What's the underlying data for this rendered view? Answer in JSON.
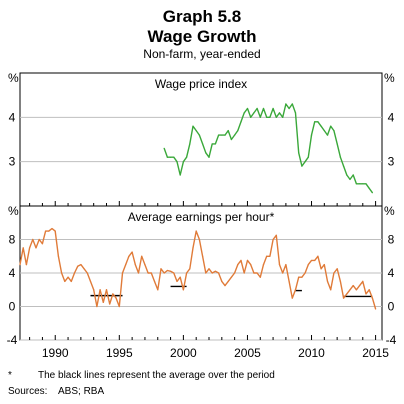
{
  "title": "Graph 5.8",
  "subtitle": "Wage Growth",
  "subtitle2": "Non-farm, year-ended",
  "footnote_mark": "*",
  "footnote": "The black lines represent the average over the period",
  "sources_label": "Sources:",
  "sources": "ABS; RBA",
  "colors": {
    "wpi": "#3aa83a",
    "aehe": "#e07b39",
    "average": "#000000",
    "grid": "#bfbfbf",
    "axis": "#000000"
  },
  "chart_data": [
    {
      "type": "line",
      "title": "Wage price index",
      "unit_label": "%",
      "ylim": [
        2,
        5
      ],
      "yticks": [
        "3",
        "4"
      ],
      "xlim": [
        1987.25,
        2015.5
      ],
      "xticks": [
        "1990",
        "1995",
        "2000",
        "2005",
        "2010",
        "2015"
      ],
      "series": [
        {
          "x": [
            1998.5,
            1998.75,
            1999,
            1999.25,
            1999.5,
            1999.75,
            2000,
            2000.25,
            2000.5,
            2000.75,
            2001,
            2001.25,
            2001.5,
            2001.75,
            2002,
            2002.25,
            2002.5,
            2002.75,
            2003,
            2003.25,
            2003.5,
            2003.75,
            2004,
            2004.25,
            2004.5,
            2004.75,
            2005,
            2005.25,
            2005.5,
            2005.75,
            2006,
            2006.25,
            2006.5,
            2006.75,
            2007,
            2007.25,
            2007.5,
            2007.75,
            2008,
            2008.25,
            2008.5,
            2008.75,
            2009,
            2009.25,
            2009.5,
            2009.75,
            2010,
            2010.25,
            2010.5,
            2010.75,
            2011,
            2011.25,
            2011.5,
            2011.75,
            2012,
            2012.25,
            2012.5,
            2012.75,
            2013,
            2013.25,
            2013.5,
            2013.75,
            2014,
            2014.25,
            2014.5,
            2014.75
          ],
          "values": [
            3.3,
            3.1,
            3.1,
            3.1,
            3.0,
            2.7,
            3.0,
            3.1,
            3.4,
            3.8,
            3.7,
            3.6,
            3.4,
            3.2,
            3.1,
            3.4,
            3.4,
            3.6,
            3.6,
            3.6,
            3.7,
            3.5,
            3.6,
            3.7,
            3.9,
            4.1,
            4.2,
            4.0,
            4.1,
            4.2,
            4.0,
            4.2,
            4.0,
            4.0,
            4.2,
            4.0,
            4.1,
            4.0,
            4.3,
            4.2,
            4.3,
            4.1,
            3.2,
            2.9,
            3.0,
            3.1,
            3.6,
            3.9,
            3.9,
            3.8,
            3.7,
            3.6,
            3.8,
            3.7,
            3.4,
            3.1,
            2.9,
            2.7,
            2.6,
            2.7,
            2.5,
            2.5,
            2.5,
            2.5,
            2.4,
            2.3
          ]
        }
      ]
    },
    {
      "type": "line",
      "title": "Average earnings per hour*",
      "unit_label": "%",
      "ylim": [
        -4,
        12
      ],
      "yticks": [
        "-4",
        "0",
        "4",
        "8"
      ],
      "xlim": [
        1987.25,
        2015.5
      ],
      "xticks": [
        "1990",
        "1995",
        "2000",
        "2005",
        "2010",
        "2015"
      ],
      "series": [
        {
          "x": [
            1987.25,
            1987.5,
            1987.75,
            1988,
            1988.25,
            1988.5,
            1988.75,
            1989,
            1989.25,
            1989.5,
            1989.75,
            1990,
            1990.25,
            1990.5,
            1990.75,
            1991,
            1991.25,
            1991.5,
            1991.75,
            1992,
            1992.25,
            1992.5,
            1992.75,
            1993,
            1993.25,
            1993.5,
            1993.75,
            1994,
            1994.25,
            1994.5,
            1994.75,
            1995,
            1995.25,
            1995.5,
            1995.75,
            1996,
            1996.25,
            1996.5,
            1996.75,
            1997,
            1997.25,
            1997.5,
            1997.75,
            1998,
            1998.25,
            1998.5,
            1998.75,
            1999,
            1999.25,
            1999.5,
            1999.75,
            2000,
            2000.25,
            2000.5,
            2000.75,
            2001,
            2001.25,
            2001.5,
            2001.75,
            2002,
            2002.25,
            2002.5,
            2002.75,
            2003,
            2003.25,
            2003.5,
            2003.75,
            2004,
            2004.25,
            2004.5,
            2004.75,
            2005,
            2005.25,
            2005.5,
            2005.75,
            2006,
            2006.25,
            2006.5,
            2006.75,
            2007,
            2007.25,
            2007.5,
            2007.75,
            2008,
            2008.25,
            2008.5,
            2008.75,
            2009,
            2009.25,
            2009.5,
            2009.75,
            2010,
            2010.25,
            2010.5,
            2010.75,
            2011,
            2011.25,
            2011.5,
            2011.75,
            2012,
            2012.25,
            2012.5,
            2012.75,
            2013,
            2013.25,
            2013.5,
            2013.75,
            2014,
            2014.25,
            2014.5,
            2014.75,
            2015
          ],
          "values": [
            5.0,
            7.0,
            5.0,
            7.0,
            8.0,
            7.0,
            8.0,
            7.5,
            9.0,
            9.0,
            9.3,
            9.0,
            6.0,
            4.0,
            3.0,
            3.5,
            3.0,
            4.0,
            4.8,
            5.0,
            4.5,
            4.0,
            3.0,
            2.0,
            0.0,
            2.0,
            0.5,
            2.0,
            0.3,
            1.5,
            1.0,
            0.0,
            4.0,
            5.0,
            6.0,
            6.5,
            5.0,
            4.0,
            6.0,
            5.0,
            4.0,
            4.0,
            3.0,
            2.0,
            4.5,
            4.0,
            4.3,
            4.2,
            4.0,
            3.0,
            3.5,
            2.0,
            4.0,
            4.5,
            7.0,
            9.0,
            8.0,
            6.0,
            4.0,
            4.5,
            4.0,
            4.2,
            4.0,
            3.0,
            2.5,
            3.0,
            3.5,
            4.0,
            5.0,
            5.5,
            4.0,
            5.5,
            5.0,
            4.0,
            4.0,
            3.5,
            5.0,
            6.0,
            6.0,
            8.0,
            8.5,
            5.0,
            4.0,
            5.0,
            3.0,
            1.0,
            2.0,
            3.5,
            3.5,
            4.0,
            5.0,
            5.5,
            5.5,
            6.0,
            4.5,
            5.0,
            3.0,
            2.0,
            4.0,
            4.5,
            3.0,
            1.0,
            1.5,
            2.0,
            2.5,
            2.0,
            2.5,
            3.0,
            1.5,
            2.0,
            1.0,
            -0.3
          ]
        }
      ],
      "averages": [
        {
          "x": [
            1992.75,
            1995.25
          ],
          "value": 1.3
        },
        {
          "x": [
            1999.0,
            2000.25
          ],
          "value": 2.4
        },
        {
          "x": [
            2008.75,
            2009.25
          ],
          "value": 1.9
        },
        {
          "x": [
            2012.5,
            2014.75
          ],
          "value": 1.2
        }
      ]
    }
  ]
}
